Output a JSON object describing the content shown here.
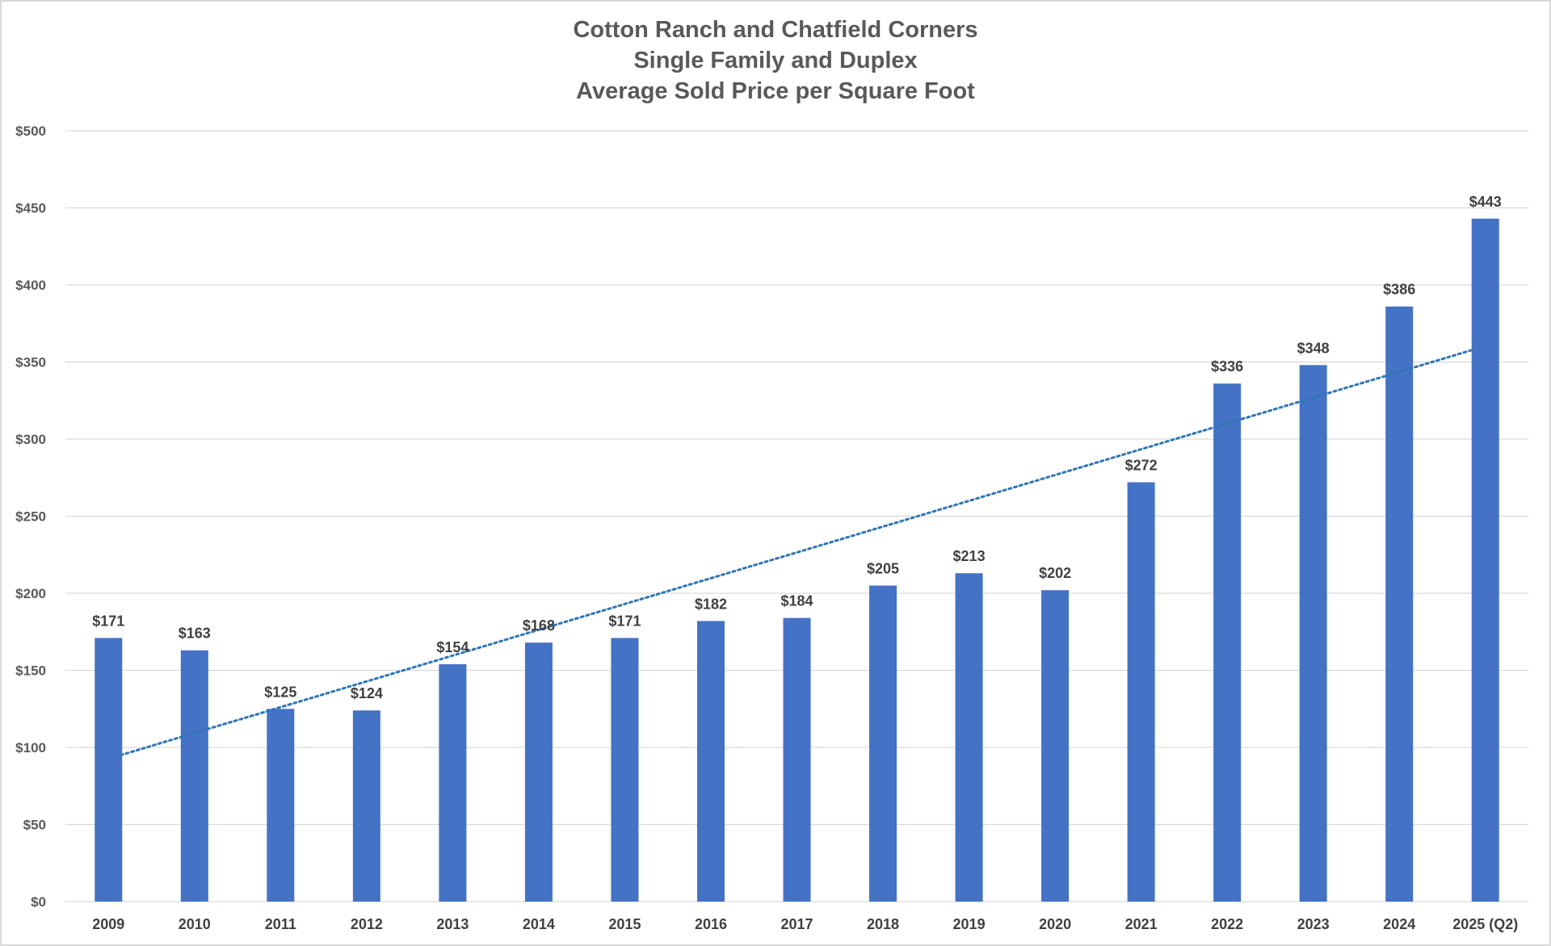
{
  "chart_data": {
    "type": "bar",
    "title_lines": [
      "Cotton Ranch and Chatfield Corners",
      "Single Family and Duplex",
      "Average Sold Price per Square Foot"
    ],
    "categories": [
      "2009",
      "2010",
      "2011",
      "2012",
      "2013",
      "2014",
      "2015",
      "2016",
      "2017",
      "2018",
      "2019",
      "2020",
      "2021",
      "2022",
      "2023",
      "2024",
      "2025 (Q2)"
    ],
    "values": [
      171,
      163,
      125,
      124,
      154,
      168,
      171,
      182,
      184,
      205,
      213,
      202,
      272,
      336,
      348,
      386,
      443
    ],
    "data_labels": [
      "$171",
      "$163",
      "$125",
      "$124",
      "$154",
      "$168",
      "$171",
      "$182",
      "$184",
      "$205",
      "$213",
      "$202",
      "$272",
      "$336",
      "$348",
      "$386",
      "$443"
    ],
    "ylim": [
      0,
      500
    ],
    "yticks": [
      0,
      50,
      100,
      150,
      200,
      250,
      300,
      350,
      400,
      450,
      500
    ],
    "ytick_labels": [
      "$0",
      "$50",
      "$100",
      "$150",
      "$200",
      "$250",
      "$300",
      "$350",
      "$400",
      "$450",
      "$500"
    ],
    "xlabel": "",
    "ylabel": "",
    "grid": true,
    "legend": "none",
    "trendline": {
      "type": "linear",
      "style": "dotted",
      "start_value": 95,
      "end_value": 358
    },
    "colors": {
      "bar": "#4472c4",
      "trend": "#2e75b6",
      "grid": "#d9d9d9",
      "text": "#595959"
    }
  }
}
